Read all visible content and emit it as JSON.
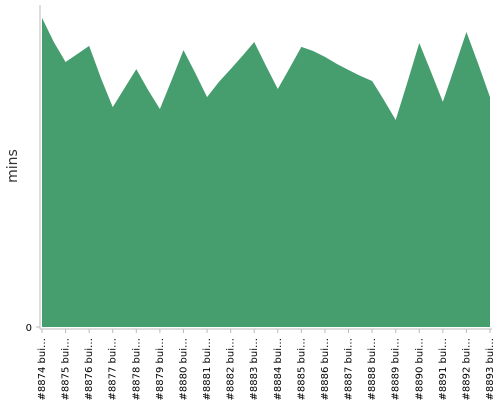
{
  "chart_data": {
    "type": "area",
    "y_label": "mins",
    "color": "#469d6e",
    "categories": [
      "#8874 bui…",
      null,
      "#8875 bui…",
      null,
      "#8876 bui…",
      null,
      "#8877 bui…",
      null,
      "#8878 bui…",
      null,
      "#8879 bui…",
      null,
      "#8880 bui…",
      null,
      "#8881 bui…",
      null,
      "#8882 bui…",
      null,
      "#8883 bui…",
      null,
      "#8884 bui…",
      null,
      "#8885 bui…",
      null,
      "#8886 bui…",
      null,
      "#8887 bui…",
      null,
      "#8888 bui…",
      null,
      "#8889 bui…",
      null,
      "#8890 bui…",
      null,
      "#8891 bui…",
      null,
      "#8892 bui…",
      null,
      "#8893 bui…"
    ],
    "values": [
      96.0,
      88.5,
      82.3,
      84.8,
      87.3,
      77.3,
      68.3,
      74.2,
      80.1,
      73.6,
      67.7,
      76.7,
      86.0,
      78.9,
      71.4,
      76.1,
      80.1,
      84.2,
      88.5,
      81.1,
      73.9,
      80.4,
      87.0,
      85.7,
      83.9,
      81.7,
      79.8,
      78.0,
      76.4,
      70.5,
      64.3,
      76.1,
      88.2,
      79.2,
      69.9,
      80.7,
      91.6,
      81.7,
      71.4
    ],
    "ylim": [
      0,
      100
    ],
    "yticks": [
      0
    ]
  }
}
